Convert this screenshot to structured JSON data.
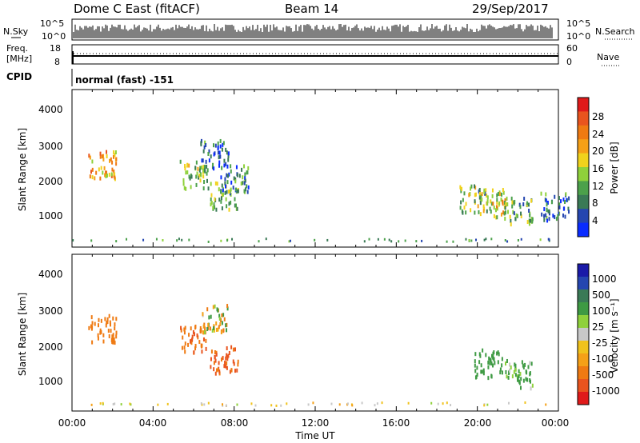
{
  "header": {
    "station": "Dome C East (fitACF)",
    "beam": "Beam 14",
    "date": "29/Sep/2017"
  },
  "top_panels": {
    "nsky_label": "N.Sky",
    "nsky_ticks": [
      "10^5",
      "10^0"
    ],
    "nsearch_label": "N.Search",
    "nsearch_ticks": [
      "10^5",
      "10^0"
    ],
    "freq_label_1": "Freq.",
    "freq_label_2": "[MHz]",
    "freq_ticks": [
      "18",
      "8"
    ],
    "nave_label": "Nave",
    "nave_ticks": [
      "60",
      "0"
    ],
    "cpid_label": "CPID",
    "cpid_text": "normal (fast) -151"
  },
  "colors": {
    "power_scale": [
      "#0a2cff",
      "#2546b0",
      "#3a7a56",
      "#4ca14b",
      "#8fd13b",
      "#f0d21c",
      "#f5a017",
      "#ef7a12",
      "#e9541e",
      "#e01a1a"
    ],
    "velocity_scale": [
      "#e01a1a",
      "#e9541e",
      "#ef7a12",
      "#f5a017",
      "#f0c21c",
      "#c8c8c8",
      "#8fd13b",
      "#3e9a43",
      "#3a7a56",
      "#2546b0",
      "#1a1aa8"
    ]
  },
  "chart_data": [
    {
      "type": "heatmap",
      "name": "power",
      "ylabel": "Slant Range [km]",
      "yticks": [
        "1000",
        "2000",
        "3000",
        "4000"
      ],
      "ylim": [
        0,
        4500
      ],
      "xlim": [
        0,
        24
      ],
      "colorbar_label": "Power [dB]",
      "colorbar_ticks": [
        "4",
        "8",
        "12",
        "16",
        "20",
        "24",
        "28"
      ],
      "clim": [
        0,
        32
      ],
      "blobs": [
        {
          "t": 1.5,
          "r": 2400,
          "v": 22
        },
        {
          "t": 6.0,
          "r": 2100,
          "v": 14
        },
        {
          "t": 7.0,
          "r": 2700,
          "v": 6
        },
        {
          "t": 7.5,
          "r": 1500,
          "v": 12
        },
        {
          "t": 8.0,
          "r": 2000,
          "v": 9
        },
        {
          "t": 19.8,
          "r": 1400,
          "v": 13
        },
        {
          "t": 20.8,
          "r": 1300,
          "v": 17
        },
        {
          "t": 22.0,
          "r": 1100,
          "v": 11
        },
        {
          "t": 23.8,
          "r": 1200,
          "v": 8
        }
      ]
    },
    {
      "type": "heatmap",
      "name": "velocity",
      "ylabel": "Slant Range [km]",
      "yticks": [
        "1000",
        "2000",
        "3000",
        "4000"
      ],
      "ylim": [
        0,
        4500
      ],
      "xlim": [
        0,
        24
      ],
      "xticks": [
        "00:00",
        "04:00",
        "08:00",
        "12:00",
        "16:00",
        "20:00",
        "00:00"
      ],
      "xlabel": "Time UT",
      "colorbar_label": "Velocity [m s⁻¹]",
      "colorbar_ticks": [
        "-1000",
        "-500",
        "-100",
        "-25",
        "25",
        "100",
        "500",
        "1000"
      ],
      "blobs": [
        {
          "t": 1.5,
          "r": 2400,
          "v": -300
        },
        {
          "t": 6.0,
          "r": 2100,
          "v": -400
        },
        {
          "t": 7.0,
          "r": 2700,
          "v": 0
        },
        {
          "t": 7.5,
          "r": 1500,
          "v": -600
        },
        {
          "t": 20.5,
          "r": 1400,
          "v": 300
        },
        {
          "t": 22.0,
          "r": 1100,
          "v": 200
        }
      ]
    }
  ]
}
